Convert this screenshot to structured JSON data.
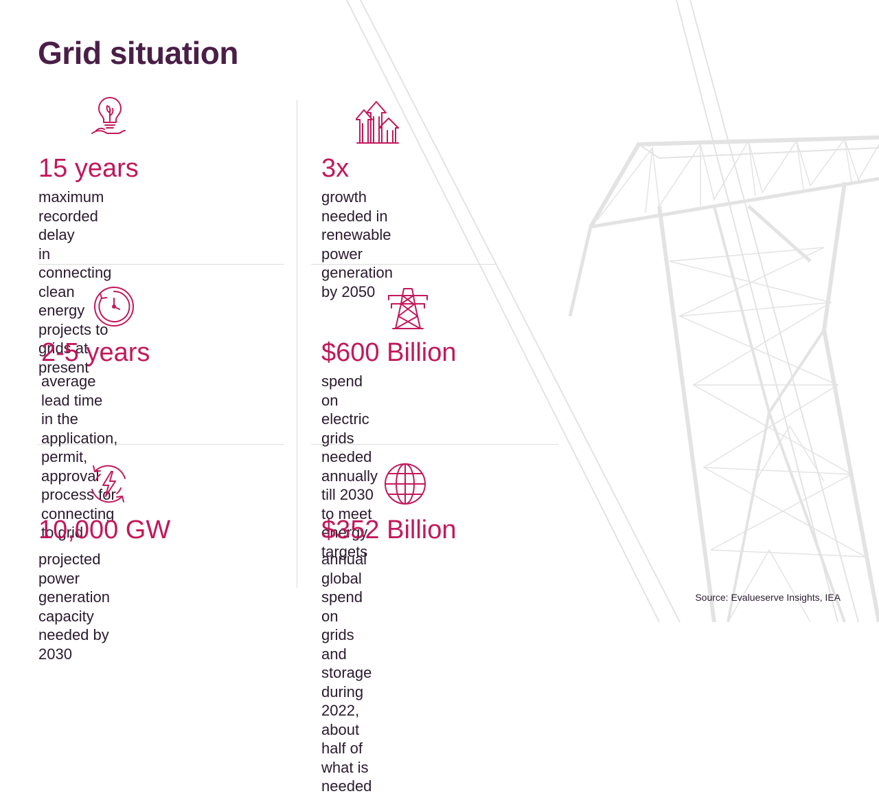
{
  "title": "Grid situation",
  "accent_color": "#c2185b",
  "title_color": "#4a1f47",
  "stats": [
    {
      "icon": "lightbulb-hand-icon",
      "value": "15 years",
      "description": "maximum recorded delay\nin connecting clean energy\nprojects to grids at present"
    },
    {
      "icon": "growth-arrows-icon",
      "value": "3x",
      "description": "growth needed in\nrenewable power\ngeneration by 2050"
    },
    {
      "icon": "clock-icon",
      "value": "2-5 years",
      "description": "average lead time in the\napplication, permit, approval\nprocess for connecting to grid"
    },
    {
      "icon": "transmission-tower-icon",
      "value": "$600 Billion",
      "description": "spend on electric grids\nneeded annually till 2030\nto meet energy targets"
    },
    {
      "icon": "power-cycle-icon",
      "value": "10,000 GW",
      "description": "projected power generation\ncapacity needed by 2030"
    },
    {
      "icon": "globe-icon",
      "value": "$352 Billion",
      "description": "annual global spend on grids and storage\nduring 2022, about half of what is needed"
    }
  ],
  "source": "Source: Evalueserve Insights, IEA"
}
